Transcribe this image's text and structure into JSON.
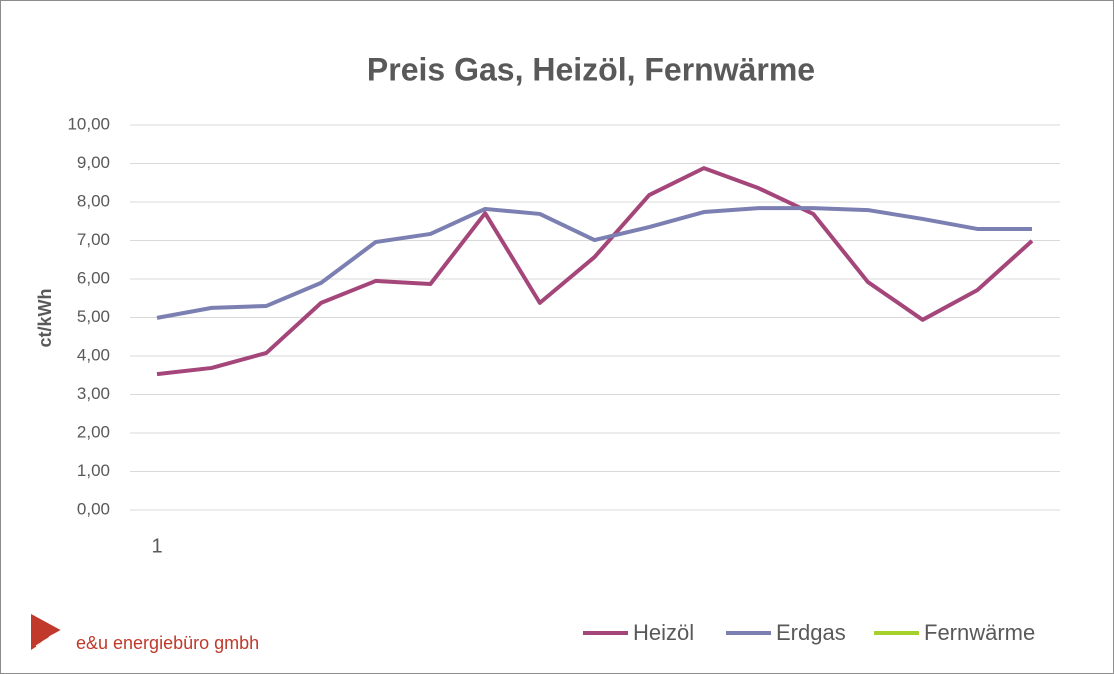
{
  "brand": "e&u energiebüro gmbh",
  "chart_data": {
    "type": "line",
    "title": "Preis Gas, Heizöl, Fernwärme",
    "y_label": "ct/kWh",
    "categories": [
      "1",
      null,
      null,
      null,
      null,
      null,
      null,
      null,
      null,
      null,
      null,
      null,
      null,
      null,
      null,
      null,
      null
    ],
    "series": [
      {
        "name": "Heizöl",
        "color": "#a4467a",
        "values": [
          3.53,
          3.69,
          4.08,
          5.38,
          5.95,
          5.87,
          7.71,
          5.38,
          6.57,
          8.18,
          8.88,
          8.36,
          7.69,
          5.92,
          4.94,
          5.71,
          6.99
        ]
      },
      {
        "name": "Erdgas",
        "color": "#7b7fb1",
        "values": [
          4.99,
          5.25,
          5.3,
          5.9,
          6.96,
          7.17,
          7.82,
          7.69,
          7.01,
          7.35,
          7.74,
          7.84,
          7.84,
          7.79,
          7.56,
          7.3,
          7.3
        ]
      },
      {
        "name": "Fernwärme",
        "color": "#a6d12c",
        "values": [
          null,
          null,
          null,
          null,
          null,
          null,
          null,
          null,
          null,
          null,
          null,
          null,
          null,
          null,
          null,
          null,
          null
        ]
      }
    ],
    "ylim": [
      0,
      10
    ],
    "yticks": [
      {
        "value": 0,
        "label": "0,00"
      },
      {
        "value": 1,
        "label": "1,00"
      },
      {
        "value": 2,
        "label": "2,00"
      },
      {
        "value": 3,
        "label": "3,00"
      },
      {
        "value": 4,
        "label": "4,00"
      },
      {
        "value": 5,
        "label": "5,00"
      },
      {
        "value": 6,
        "label": "6,00"
      },
      {
        "value": 7,
        "label": "7,00"
      },
      {
        "value": 8,
        "label": "8,00"
      },
      {
        "value": 9,
        "label": "9,00"
      },
      {
        "value": 10,
        "label": "10,00"
      }
    ],
    "grid": true,
    "legend": "bottom-right"
  }
}
